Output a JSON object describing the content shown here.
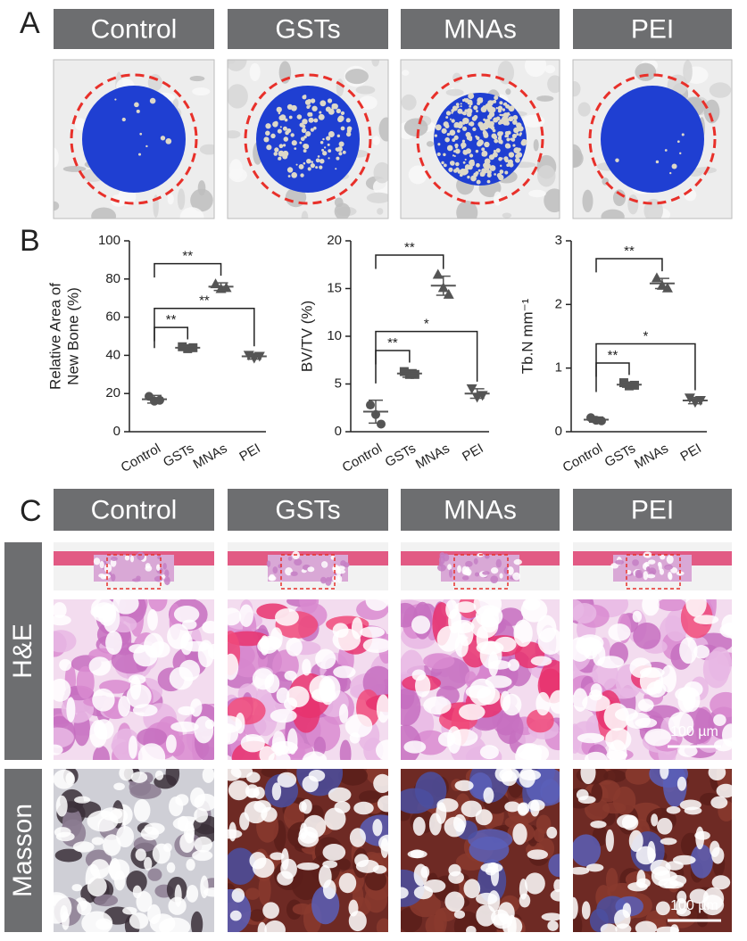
{
  "panels": {
    "A": {
      "label": "A",
      "headers": [
        "Control",
        "GSTs",
        "MNAs",
        "PEI"
      ]
    },
    "B": {
      "label": "B"
    },
    "C": {
      "label": "C",
      "headers": [
        "Control",
        "GSTs",
        "MNAs",
        "PEI"
      ],
      "rows": [
        "H&E",
        "Masson"
      ],
      "scale_bars": [
        "100 µm",
        "100 µm"
      ]
    }
  },
  "chart_data": [
    {
      "type": "dot",
      "y_label": [
        "Relative Area of",
        "New Bone (%)"
      ],
      "categories": [
        "Control",
        "GSTs",
        "MNAs",
        "PEI"
      ],
      "values": [
        [
          18.5,
          16,
          16.5
        ],
        [
          44.5,
          43.5,
          44
        ],
        [
          77.5,
          75,
          75.5
        ],
        [
          40,
          38.5,
          39.5
        ]
      ],
      "means": [
        17,
        44,
        76,
        39.5
      ],
      "errors": [
        2,
        0.6,
        2,
        1.5
      ],
      "ylim": [
        0,
        100
      ],
      "yticks": [
        0,
        20,
        40,
        60,
        80,
        100
      ],
      "color": "#555555",
      "comparisons": [
        {
          "between": [
            "Control",
            "GSTs"
          ],
          "label": "**"
        },
        {
          "between": [
            "Control",
            "PEI"
          ],
          "label": "**"
        },
        {
          "between": [
            "Control",
            "MNAs"
          ],
          "label": "**"
        }
      ]
    },
    {
      "type": "dot",
      "y_label": [
        "BV/TV (%)"
      ],
      "categories": [
        "Control",
        "GSTs",
        "MNAs",
        "PEI"
      ],
      "values": [
        [
          2.8,
          1.8,
          0.8
        ],
        [
          6.3,
          6.0,
          6.0
        ],
        [
          16.5,
          15.1,
          14.4
        ],
        [
          4.5,
          3.6,
          3.8
        ]
      ],
      "means": [
        2.1,
        6.1,
        15.3,
        4
      ],
      "errors": [
        1.2,
        0.4,
        1,
        0.5
      ],
      "ylim": [
        0,
        20
      ],
      "yticks": [
        0,
        5,
        10,
        15,
        20
      ],
      "color": "#555555",
      "comparisons": [
        {
          "between": [
            "Control",
            "GSTs"
          ],
          "label": "**"
        },
        {
          "between": [
            "Control",
            "PEI"
          ],
          "label": "*"
        },
        {
          "between": [
            "Control",
            "MNAs"
          ],
          "label": "**"
        }
      ]
    },
    {
      "type": "dot",
      "y_label": [
        "Tb.N mm⁻¹"
      ],
      "categories": [
        "Control",
        "GSTs",
        "MNAs",
        "PEI"
      ],
      "values": [
        [
          0.22,
          0.18,
          0.17
        ],
        [
          0.77,
          0.72,
          0.73
        ],
        [
          2.42,
          2.3,
          2.26
        ],
        [
          0.53,
          0.46,
          0.49
        ]
      ],
      "means": [
        0.19,
        0.74,
        2.33,
        0.49
      ],
      "errors": [
        0.04,
        0.04,
        0.08,
        0.05
      ],
      "ylim": [
        0,
        3
      ],
      "yticks": [
        0,
        1,
        2,
        3
      ],
      "color": "#555555",
      "comparisons": [
        {
          "between": [
            "Control",
            "GSTs"
          ],
          "label": "**"
        },
        {
          "between": [
            "Control",
            "PEI"
          ],
          "label": "*"
        },
        {
          "between": [
            "Control",
            "MNAs"
          ],
          "label": "**"
        }
      ]
    }
  ]
}
